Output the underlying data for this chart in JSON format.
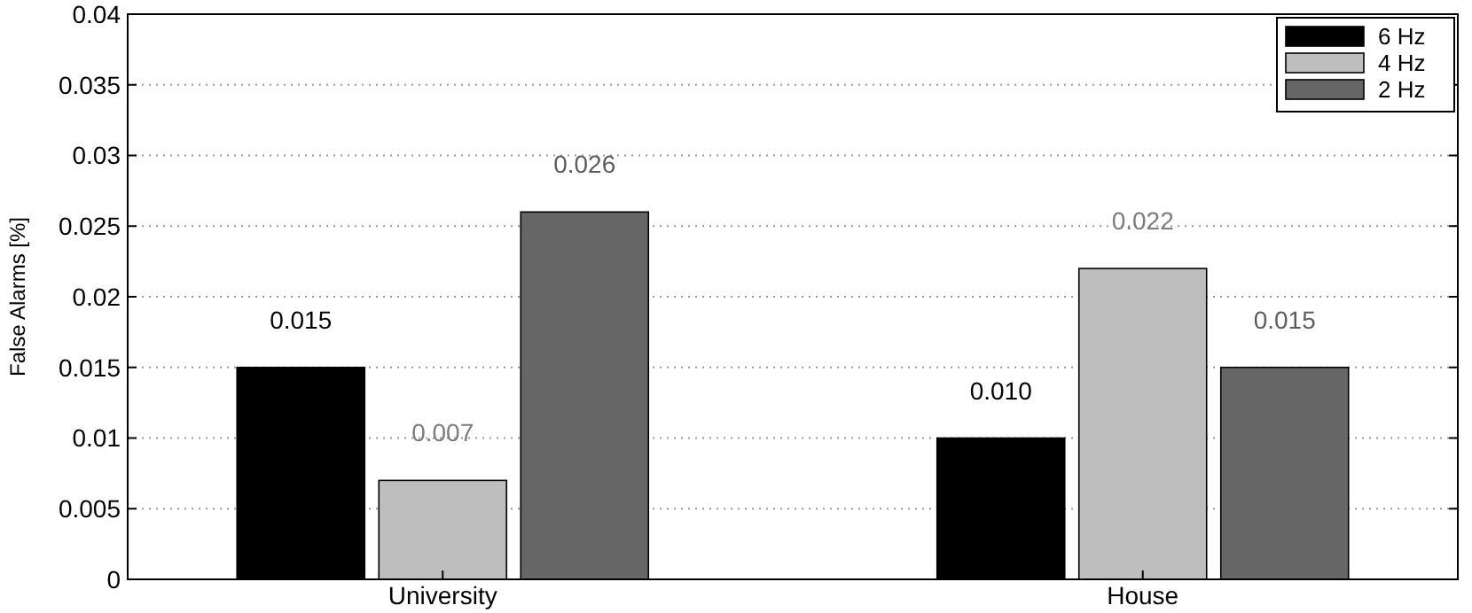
{
  "chart_data": {
    "type": "bar",
    "ylabel": "False Alarms [%]",
    "categories": [
      "University",
      "House"
    ],
    "series": [
      {
        "name": "6 Hz",
        "color": "#000000",
        "values": [
          0.015,
          0.01
        ],
        "value_labels": [
          "0.015",
          "0.010"
        ]
      },
      {
        "name": "4 Hz",
        "color": "#bebebe",
        "values": [
          0.007,
          0.022
        ],
        "value_labels": [
          "0.007",
          "0.022"
        ]
      },
      {
        "name": "2 Hz",
        "color": "#666666",
        "values": [
          0.026,
          0.015
        ],
        "value_labels": [
          "0.026",
          "0.015"
        ]
      }
    ],
    "ylim": [
      0,
      0.04
    ],
    "yticks": [
      0,
      0.005,
      0.01,
      0.015,
      0.02,
      0.025,
      0.03,
      0.035,
      0.04
    ],
    "grid": "y",
    "legend": "top right"
  }
}
